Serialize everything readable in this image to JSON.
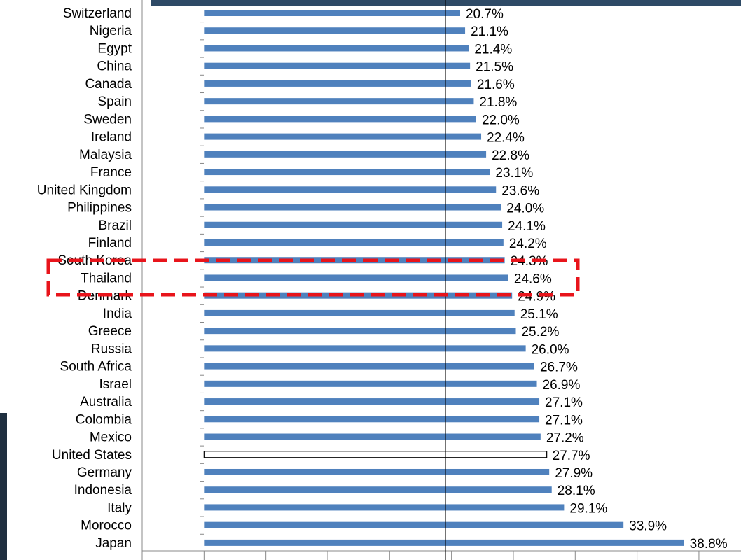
{
  "chart_data": {
    "type": "barh",
    "categories": [
      "Switzerland",
      "Nigeria",
      "Egypt",
      "China",
      "Canada",
      "Spain",
      "Sweden",
      "Ireland",
      "Malaysia",
      "France",
      "United Kingdom",
      "Philippines",
      "Brazil",
      "Finland",
      "South Korea",
      "Thailand",
      "Denmark",
      "India",
      "Greece",
      "Russia",
      "South Africa",
      "Israel",
      "Australia",
      "Colombia",
      "Mexico",
      "United States",
      "Germany",
      "Indonesia",
      "Italy",
      "Morocco",
      "Japan"
    ],
    "values": [
      20.7,
      21.1,
      21.4,
      21.5,
      21.6,
      21.8,
      22.0,
      22.4,
      22.8,
      23.1,
      23.6,
      24.0,
      24.1,
      24.2,
      24.3,
      24.6,
      24.9,
      25.1,
      25.2,
      26.0,
      26.7,
      26.9,
      27.1,
      27.1,
      27.2,
      27.7,
      27.9,
      28.1,
      29.1,
      33.9,
      38.8
    ],
    "value_labels": [
      "20.7%",
      "21.1%",
      "21.4%",
      "21.5%",
      "21.6%",
      "21.8%",
      "22.0%",
      "22.4%",
      "22.8%",
      "23.1%",
      "23.6%",
      "24.0%",
      "24.1%",
      "24.2%",
      "24.3%",
      "24.6%",
      "24.9%",
      "25.1%",
      "25.2%",
      "26.0%",
      "26.7%",
      "26.9%",
      "27.1%",
      "27.1%",
      "27.2%",
      "27.7%",
      "27.9%",
      "28.1%",
      "29.1%",
      "33.9%",
      "38.8%"
    ],
    "colors": [
      "#4f81bd",
      "#4f81bd",
      "#4f81bd",
      "#4f81bd",
      "#4f81bd",
      "#4f81bd",
      "#4f81bd",
      "#4f81bd",
      "#4f81bd",
      "#4f81bd",
      "#4f81bd",
      "#4f81bd",
      "#4f81bd",
      "#4f81bd",
      "#4f81bd",
      "#4f81bd",
      "#4f81bd",
      "#4f81bd",
      "#4f81bd",
      "#4f81bd",
      "#4f81bd",
      "#4f81bd",
      "#4f81bd",
      "#4f81bd",
      "#4f81bd",
      "#ffffff",
      "#4f81bd",
      "#4f81bd",
      "#4f81bd",
      "#4f81bd",
      "#4f81bd"
    ],
    "reference_value": 19.5,
    "xlim": [
      -5,
      43.4
    ],
    "xticks": [
      -5,
      0,
      5,
      10,
      15,
      20,
      25,
      30,
      35,
      40
    ]
  }
}
